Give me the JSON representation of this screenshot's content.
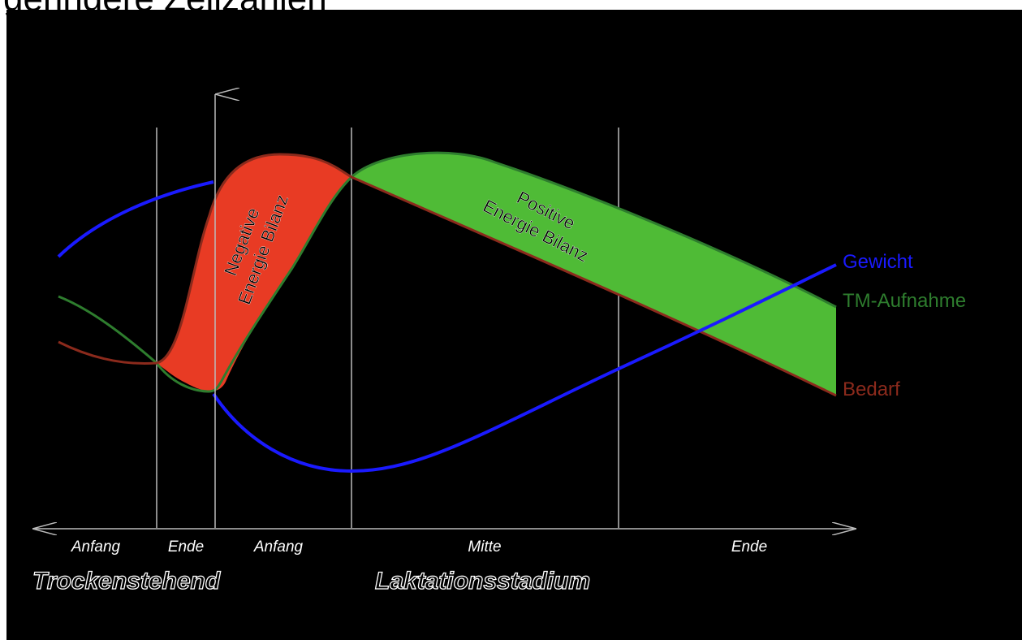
{
  "header": {
    "title": "geringere Zellzahlen"
  },
  "colors": {
    "gewicht": "#1a1aff",
    "tm_aufnahme": "#2e7d2e",
    "bedarf": "#8b2a1c",
    "negative_fill": "#e83b24",
    "positive_fill": "#4fbb36",
    "background": "#000000",
    "grid": "#bbbbbb"
  },
  "areas": {
    "negative": {
      "line1": "Negative",
      "line2": "Energie Bilanz"
    },
    "positive": {
      "line1": "Positive",
      "line2": "Energie Bilanz"
    }
  },
  "legend": {
    "gewicht": "Gewicht",
    "tm_aufnahme": "TM-Aufnahme",
    "bedarf": "Bedarf"
  },
  "x_axis": {
    "stages": [
      "Anfang",
      "Ende",
      "Anfang",
      "Mitte",
      "Ende"
    ],
    "group_dry": "Trockenstehend",
    "group_lactation": "Laktationsstadium"
  }
}
